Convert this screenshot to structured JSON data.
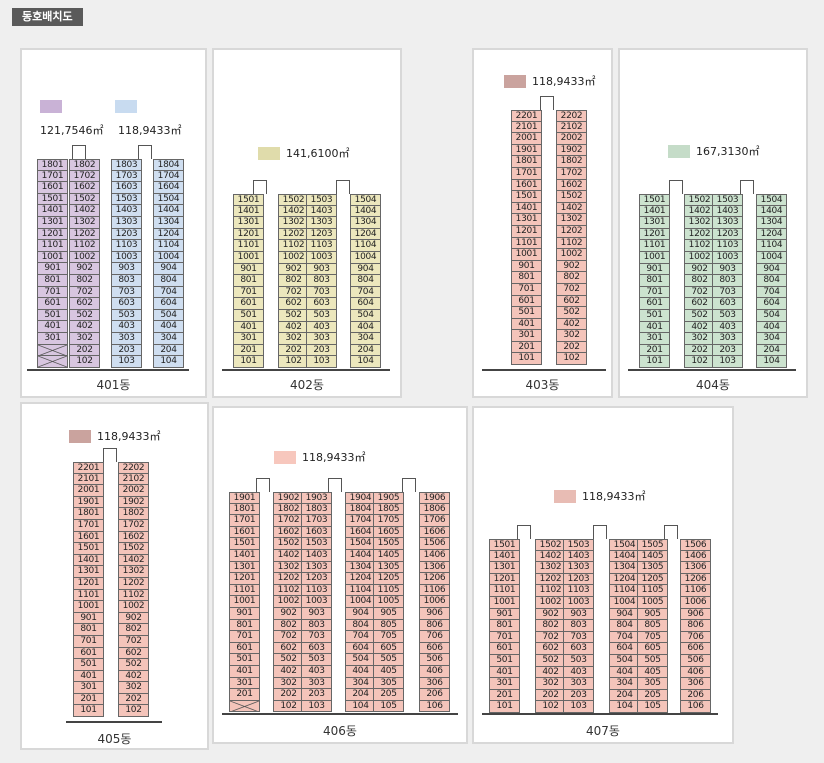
{
  "title": "동호배치도",
  "colors": {
    "purple": "#d8c6e0",
    "blue": "#cfdef0",
    "yellow": "#ece7bd",
    "salmon": "#f4c4ba",
    "green": "#cce3cf",
    "legend_purple": "#c9b2d6",
    "legend_blue": "#c8dbf0",
    "legend_yellow": "#e0dcab",
    "legend_brown": "#caa39e",
    "legend_green": "#c5dcc8",
    "legend_pink": "#f7c7bd"
  },
  "legends": {
    "b401_a": "121,7546㎡",
    "b401_b": "118,9433㎡",
    "b402": "141,6100㎡",
    "b403": "118,9433㎡",
    "b404": "167,3130㎡",
    "b405": "118,9433㎡",
    "b406": "118,9433㎡",
    "b407": "118,9433㎡"
  },
  "buildings": [
    {
      "name": "401동",
      "floors": 18,
      "columns": [
        {
          "line": 1,
          "color": "purple",
          "missing": [
            1,
            2
          ]
        },
        {
          "line": 2,
          "color": "purple",
          "missing": []
        },
        {
          "line": 3,
          "color": "blue",
          "missing": []
        },
        {
          "line": 4,
          "color": "blue",
          "missing": []
        }
      ]
    },
    {
      "name": "402동",
      "floors": 15,
      "columns": [
        {
          "line": 1,
          "color": "yellow",
          "missing": []
        },
        {
          "line": 2,
          "color": "yellow",
          "missing": []
        },
        {
          "line": 3,
          "color": "yellow",
          "missing": []
        },
        {
          "line": 4,
          "color": "yellow",
          "missing": []
        }
      ]
    },
    {
      "name": "403동",
      "floors": 22,
      "columns": [
        {
          "line": 1,
          "color": "salmon",
          "missing": []
        },
        {
          "line": 2,
          "color": "salmon",
          "missing": []
        }
      ]
    },
    {
      "name": "404동",
      "floors": 15,
      "columns": [
        {
          "line": 1,
          "color": "green",
          "missing": []
        },
        {
          "line": 2,
          "color": "green",
          "missing": []
        },
        {
          "line": 3,
          "color": "green",
          "missing": []
        },
        {
          "line": 4,
          "color": "green",
          "missing": []
        }
      ]
    },
    {
      "name": "405동",
      "floors": 22,
      "columns": [
        {
          "line": 1,
          "color": "salmon",
          "missing": []
        },
        {
          "line": 2,
          "color": "salmon",
          "missing": []
        }
      ]
    },
    {
      "name": "406동",
      "floors": 19,
      "columns": [
        {
          "line": 1,
          "color": "salmon",
          "missing": [
            1
          ]
        },
        {
          "line": 2,
          "color": "salmon",
          "missing": []
        },
        {
          "line": 3,
          "color": "salmon",
          "missing": []
        },
        {
          "line": 4,
          "color": "salmon",
          "missing": []
        },
        {
          "line": 5,
          "color": "salmon",
          "missing": []
        },
        {
          "line": 6,
          "color": "salmon",
          "missing": []
        }
      ]
    },
    {
      "name": "407동",
      "floors": 15,
      "columns": [
        {
          "line": 1,
          "color": "salmon",
          "missing": []
        },
        {
          "line": 2,
          "color": "salmon",
          "missing": []
        },
        {
          "line": 3,
          "color": "salmon",
          "missing": []
        },
        {
          "line": 4,
          "color": "salmon",
          "missing": []
        },
        {
          "line": 5,
          "color": "salmon",
          "missing": []
        },
        {
          "line": 6,
          "color": "salmon",
          "missing": []
        }
      ]
    }
  ]
}
